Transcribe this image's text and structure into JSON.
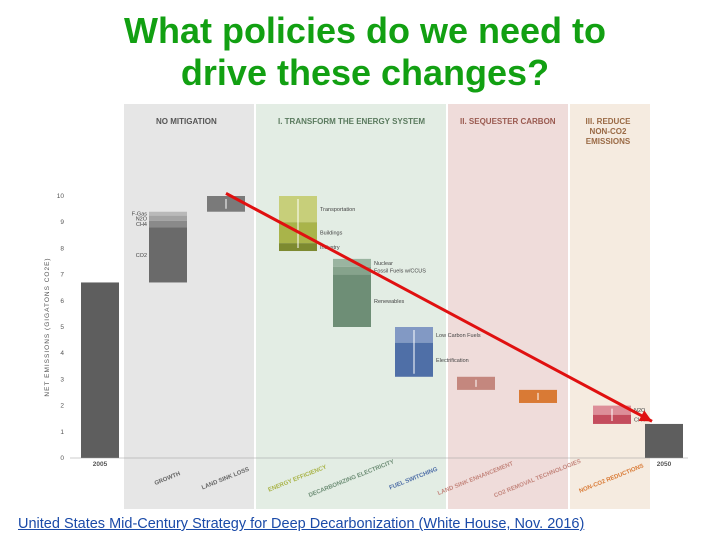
{
  "slide": {
    "title_line1": "What policies do we need to",
    "title_line2": "drive these changes?",
    "citation": "United States Mid-Century Strategy for Deep Decarbonization (White House, Nov. 2016)"
  },
  "colors": {
    "title": "#12a012",
    "arrow": "#e01010",
    "no_mitigation_bg": "#e6e6e6",
    "transform_bg": "#e3ede4",
    "sequester_bg": "#efdcda",
    "non_co2_bg": "#f5ebe0"
  },
  "chart_data": {
    "type": "bar",
    "ylabel": "NET EMISSIONS (GIGATONS CO2E)",
    "ylim": [
      0,
      10
    ],
    "yticks": [
      "0",
      "1",
      "2",
      "3",
      "4",
      "5",
      "6",
      "7",
      "8",
      "9",
      "10"
    ],
    "sections": [
      {
        "label": "NO MITIGATION",
        "color": "#e6e6e6",
        "label_color": "#555555"
      },
      {
        "label": "I. TRANSFORM THE ENERGY SYSTEM",
        "color": "#e3ede4",
        "label_color": "#5a7a5e"
      },
      {
        "label": "II. SEQUESTER CARBON",
        "color": "#efdcda",
        "label_color": "#9a5a50"
      },
      {
        "label": "III. REDUCE NON-CO2 EMISSIONS",
        "color": "#f5ebe0",
        "label_color": "#9a6a45"
      }
    ],
    "categories": [
      "2005",
      "GROWTH",
      "LAND SINK LOSS",
      "ENERGY EFFICIENCY",
      "DECARBONIZING ELECTRICITY",
      "FUEL SWITCHING",
      "LAND SINK ENHANCEMENT",
      "CO2 REMOVAL TECHNOLOGIES",
      "NON-CO2 REDUCTIONS",
      "2050"
    ],
    "bars": [
      {
        "category": "2005",
        "start": 0,
        "end": 6.7,
        "color": "#5e5e5e"
      },
      {
        "category": "GROWTH",
        "start": 6.7,
        "end": 9.4,
        "color": "#6a6a6a",
        "segments": [
          {
            "label": "F-Gas",
            "from": 9.25,
            "to": 9.4,
            "color": "#b9b9b9"
          },
          {
            "label": "N2O",
            "from": 9.05,
            "to": 9.25,
            "color": "#a3a3a3"
          },
          {
            "label": "CH4",
            "from": 8.8,
            "to": 9.05,
            "color": "#8a8a8a"
          },
          {
            "label": "CO2",
            "from": 6.7,
            "to": 8.8,
            "color": "#6a6a6a"
          }
        ]
      },
      {
        "category": "LAND SINK LOSS",
        "start": 9.4,
        "end": 10.0,
        "color": "#7a7a7a",
        "arrow": "up"
      },
      {
        "category": "ENERGY EFFICIENCY",
        "start": 10.0,
        "end": 7.9,
        "color": "#a9b44a",
        "arrow": "down",
        "segments": [
          {
            "label": "Transportation",
            "from": 9.0,
            "to": 10.0,
            "color": "#c7cf7a"
          },
          {
            "label": "Buildings",
            "from": 8.2,
            "to": 9.0,
            "color": "#a9b44a"
          },
          {
            "label": "Industry",
            "from": 7.9,
            "to": 8.2,
            "color": "#7d8a30"
          }
        ]
      },
      {
        "category": "DECARBONIZING ELECTRICITY",
        "start": 7.6,
        "end": 5.0,
        "color": "#6e8e76",
        "segments": [
          {
            "label": "Nuclear",
            "from": 7.3,
            "to": 7.6,
            "color": "#9ab4a0"
          },
          {
            "label": "Fossil Fuels w/CCUS",
            "from": 7.0,
            "to": 7.3,
            "color": "#86a38c"
          },
          {
            "label": "Renewables",
            "from": 5.0,
            "to": 7.0,
            "color": "#6e8e76"
          }
        ]
      },
      {
        "category": "FUEL SWITCHING",
        "start": 5.0,
        "end": 3.1,
        "color": "#4f6fa7",
        "arrow": "down",
        "segments": [
          {
            "label": "Low Carbon Fuels",
            "from": 4.4,
            "to": 5.0,
            "color": "#8299c4"
          },
          {
            "label": "Electrification",
            "from": 3.1,
            "to": 4.4,
            "color": "#4f6fa7"
          }
        ]
      },
      {
        "category": "LAND SINK ENHANCEMENT",
        "start": 3.1,
        "end": 2.6,
        "color": "#c4877e",
        "arrow": "down"
      },
      {
        "category": "CO2 REMOVAL TECHNOLOGIES",
        "start": 2.6,
        "end": 2.1,
        "color": "#d97a35",
        "arrow": "down"
      },
      {
        "category": "NON-CO2 REDUCTIONS",
        "start": 2.0,
        "end": 1.3,
        "color": "#c44d5e",
        "arrow": "down",
        "segments": [
          {
            "label": "N2O",
            "from": 1.65,
            "to": 2.0,
            "color": "#dd8e99"
          },
          {
            "label": "CH4",
            "from": 1.3,
            "to": 1.65,
            "color": "#c44d5e"
          }
        ]
      },
      {
        "category": "2050",
        "start": 0,
        "end": 1.3,
        "color": "#5e5e5e"
      }
    ],
    "annotation_arrow": {
      "from_category": "LAND SINK LOSS",
      "from_value": 10.1,
      "to_category": "2050",
      "to_value": 1.4,
      "color": "#e01010"
    }
  }
}
